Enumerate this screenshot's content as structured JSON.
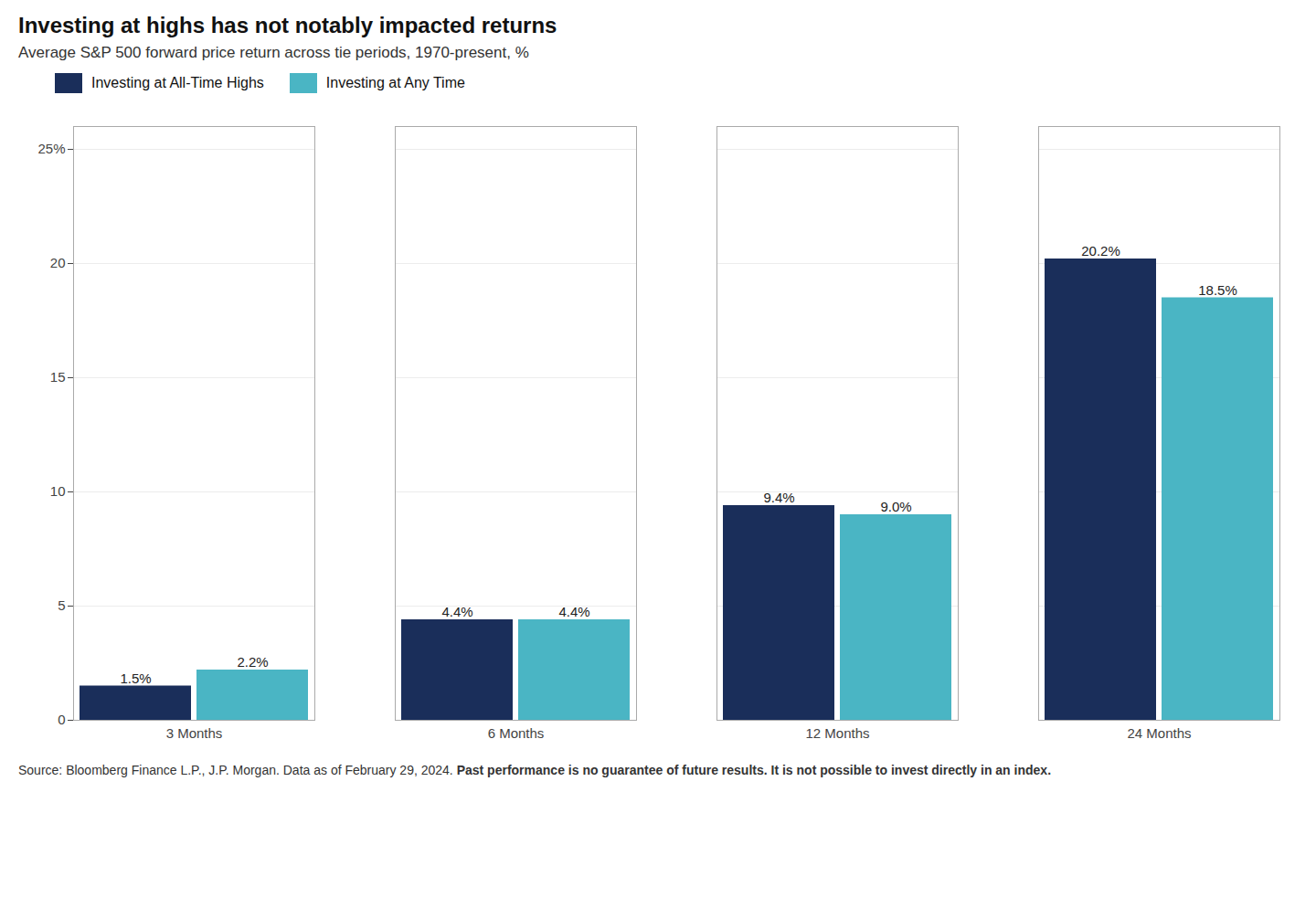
{
  "chart_data": {
    "type": "bar",
    "title": "Investing at highs has not notably impacted returns",
    "subtitle": "Average S&P 500 forward price return across tie periods, 1970-present, %",
    "categories": [
      "3 Months",
      "6 Months",
      "12 Months",
      "24 Months"
    ],
    "series": [
      {
        "name": "Investing at All-Time Highs",
        "color": "#1a2e5a",
        "values": [
          1.5,
          4.4,
          9.4,
          20.2
        ],
        "value_labels": [
          "1.5%",
          "4.4%",
          "9.4%",
          "20.2%"
        ]
      },
      {
        "name": "Investing at Any Time",
        "color": "#4ab5c4",
        "values": [
          2.2,
          4.4,
          9.0,
          18.5
        ],
        "value_labels": [
          "2.2%",
          "4.4%",
          "9.0%",
          "18.5%"
        ]
      }
    ],
    "ylim": [
      0,
      26
    ],
    "yticks": [
      0,
      5,
      10,
      15,
      20,
      {
        "value": 25,
        "label": "25%"
      }
    ],
    "grid": true,
    "legend": "top-left",
    "data_labels": true,
    "footnote": "Source: Bloomberg Finance L.P., J.P. Morgan. Data as of February 29, 2024.",
    "footnote_bold": "Past performance is no guarantee of future results. It is not possible to invest directly in an index."
  }
}
